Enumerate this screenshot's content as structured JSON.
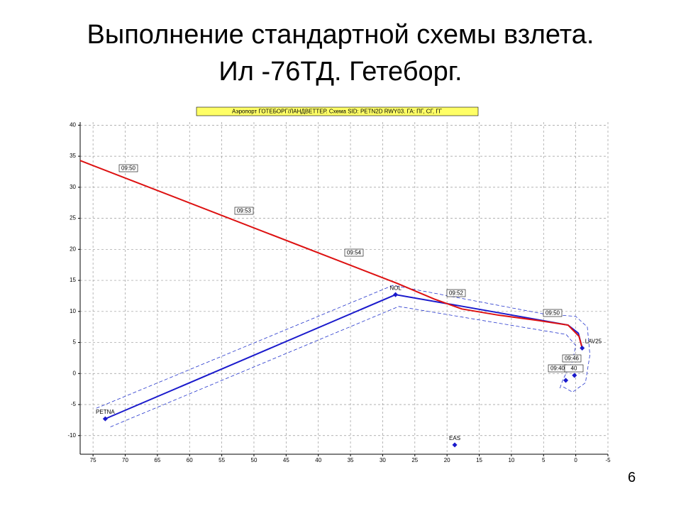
{
  "slide": {
    "title": [
      "Выполнение стандартной схемы взлета.",
      "Ил -76ТД. Гетеборг."
    ],
    "page_number": "6"
  },
  "chart_data": {
    "type": "line",
    "title": "Аэропорт ГОТЕБОРГ/ЛАНДВЕТТЕР. Схема SID: PETN2D RWY03. ГА: ПГ, СГ, ГГ",
    "xlim": [
      77,
      -5
    ],
    "ylim": [
      -13,
      40.5
    ],
    "xticks": [
      75,
      70,
      65,
      60,
      55,
      50,
      45,
      40,
      35,
      30,
      25,
      20,
      15,
      10,
      5,
      0,
      -5
    ],
    "yticks": [
      40,
      35,
      30,
      25,
      20,
      15,
      10,
      5,
      0,
      -5,
      -10
    ],
    "grid": true,
    "series": [
      {
        "color": "#2233cc",
        "style": "dashed",
        "x": [
          74.5,
          28.4,
          5,
          0,
          -1.8,
          -2.2,
          -1.5,
          0.5,
          2.2
        ],
        "values": [
          -5.6,
          14.2,
          9.6,
          9.2,
          7.5,
          3,
          -1.5,
          -3,
          -2
        ]
      },
      {
        "color": "#2233cc",
        "style": "dashed",
        "x": [
          72.3,
          27.5,
          5,
          1.5,
          0,
          0.5,
          2,
          2.5
        ],
        "values": [
          -8.6,
          10.8,
          6.9,
          6.3,
          4.5,
          2,
          -1,
          -2.5
        ]
      },
      {
        "color": "#1a1acc",
        "style": "solid",
        "x": [
          73.1,
          28,
          17.5,
          5.5,
          1.2,
          -0.4,
          -1
        ],
        "values": [
          -7.3,
          12.7,
          10.8,
          8.6,
          7.8,
          6.5,
          4.1
        ]
      },
      {
        "color": "#dd1111",
        "style": "solid",
        "x": [
          77,
          27.7,
          22,
          17.7,
          12,
          5.6,
          1.2,
          -0.5,
          -1
        ],
        "values": [
          34.3,
          14.5,
          12,
          10.4,
          9.4,
          8.5,
          7.8,
          6,
          4.1
        ]
      }
    ],
    "points": {
      "color": "#1a1acc",
      "labels": [
        "PETNA",
        "NOL",
        "EAS",
        "LAV25",
        null,
        null
      ],
      "x": [
        73.1,
        28,
        18.8,
        -1,
        1.55,
        0.2
      ],
      "y": [
        -7.3,
        12.7,
        -11.5,
        4.1,
        -1.1,
        -0.3
      ]
    },
    "annotations": [
      "09:50",
      "09:53",
      "09:54",
      "09:52",
      "09:50",
      "09:46",
      "09:40",
      "40"
    ]
  }
}
